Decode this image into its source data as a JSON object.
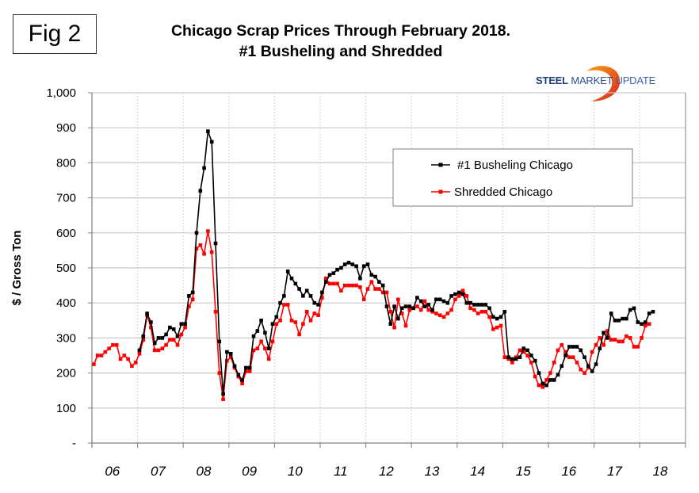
{
  "figure_label": "Fig 2",
  "title_line1": "Chicago Scrap Prices Through February 2018.",
  "title_line2": "#1 Busheling and Shredded",
  "logo": {
    "bold": "STEEL",
    "mid": "MARKET",
    "light": "UPDATE"
  },
  "colors": {
    "busheling": "#000000",
    "shredded": "#ff0000",
    "grid": "#c8c8c8",
    "axis": "#808080"
  },
  "chart_data": {
    "type": "line",
    "title": "Chicago Scrap Prices Through February 2018. #1 Busheling and Shredded",
    "xlabel": "",
    "ylabel": "$ / Gross Ton",
    "ylim": [
      0,
      1000
    ],
    "yticks": [
      0,
      100,
      200,
      300,
      400,
      500,
      600,
      700,
      800,
      900,
      1000
    ],
    "ytick_labels": [
      "-",
      "100",
      "200",
      "300",
      "400",
      "500",
      "600",
      "700",
      "800",
      "900",
      "1,000"
    ],
    "xtick_labels": [
      "06",
      "07",
      "08",
      "09",
      "10",
      "11",
      "12",
      "13",
      "14",
      "15",
      "16",
      "17",
      "18"
    ],
    "x_start": "2006-01",
    "x_frequency": "monthly",
    "grid": true,
    "legend_position": "upper-right",
    "series": [
      {
        "name": "#1 Busheling Chicago",
        "start_index": 12,
        "values": [
          265,
          305,
          370,
          345,
          285,
          300,
          300,
          310,
          330,
          325,
          305,
          340,
          340,
          420,
          430,
          600,
          720,
          785,
          890,
          860,
          570,
          290,
          140,
          260,
          255,
          220,
          195,
          180,
          215,
          215,
          305,
          320,
          350,
          315,
          270,
          340,
          360,
          400,
          420,
          490,
          470,
          455,
          440,
          420,
          435,
          420,
          400,
          395,
          430,
          460,
          480,
          485,
          495,
          500,
          510,
          515,
          510,
          505,
          470,
          505,
          510,
          480,
          475,
          460,
          450,
          390,
          340,
          390,
          355,
          385,
          390,
          390,
          385,
          415,
          405,
          390,
          395,
          380,
          410,
          410,
          405,
          400,
          420,
          425,
          430,
          425,
          400,
          400,
          395,
          395,
          395,
          395,
          385,
          360,
          355,
          360,
          375,
          245,
          240,
          240,
          245,
          270,
          265,
          250,
          235,
          200,
          170,
          165,
          180,
          180,
          195,
          220,
          250,
          275,
          275,
          275,
          265,
          245,
          220,
          205,
          225,
          270,
          315,
          300,
          370,
          350,
          350,
          355,
          355,
          380,
          385,
          345,
          340,
          345,
          370,
          375
        ]
      },
      {
        "name": "Shredded Chicago",
        "start_index": 0,
        "values": [
          225,
          250,
          250,
          260,
          270,
          280,
          280,
          240,
          250,
          240,
          220,
          230,
          255,
          295,
          365,
          330,
          265,
          265,
          270,
          280,
          295,
          295,
          280,
          310,
          330,
          390,
          410,
          555,
          565,
          540,
          605,
          545,
          375,
          200,
          125,
          235,
          245,
          215,
          190,
          170,
          205,
          205,
          265,
          270,
          290,
          270,
          240,
          290,
          340,
          350,
          395,
          395,
          350,
          345,
          310,
          340,
          375,
          350,
          370,
          365,
          415,
          470,
          455,
          455,
          455,
          435,
          450,
          450,
          450,
          450,
          445,
          410,
          440,
          460,
          440,
          440,
          430,
          430,
          375,
          330,
          410,
          370,
          335,
          380,
          385,
          390,
          380,
          405,
          380,
          375,
          370,
          365,
          360,
          370,
          380,
          410,
          420,
          435,
          420,
          385,
          380,
          370,
          375,
          375,
          360,
          325,
          330,
          335,
          245,
          240,
          230,
          245,
          265,
          260,
          250,
          230,
          190,
          165,
          160,
          180,
          200,
          230,
          265,
          280,
          260,
          245,
          245,
          230,
          210,
          200,
          215,
          260,
          280,
          300,
          280,
          320,
          295,
          295,
          290,
          290,
          305,
          300,
          275,
          275,
          300,
          335,
          340
        ]
      }
    ]
  }
}
